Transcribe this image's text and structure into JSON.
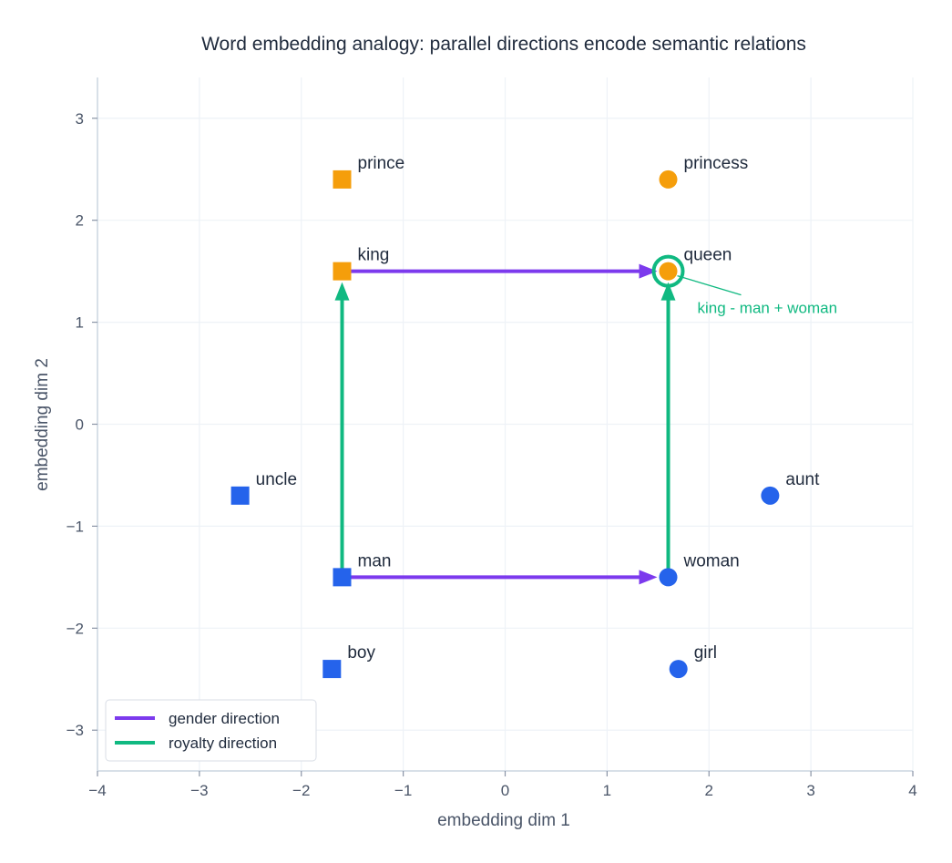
{
  "chart_data": {
    "type": "scatter",
    "title": "Word embedding analogy: parallel directions encode semantic relations",
    "xlabel": "embedding dim 1",
    "ylabel": "embedding dim 2",
    "xlim": [
      -4,
      4
    ],
    "ylim": [
      -3.4,
      3.4
    ],
    "xticks": [
      -4,
      -3,
      -2,
      -1,
      0,
      1,
      2,
      3,
      4
    ],
    "yticks": [
      -3,
      -2,
      -1,
      0,
      1,
      2,
      3
    ],
    "grid": true,
    "legend_position": "bottom-left",
    "colors": {
      "male_common": "#2563eb",
      "royal": "#f59e0b",
      "female_common": "#2563eb",
      "gender": "#7c3aed",
      "royalty": "#10b981",
      "axis": "#cbd5e1",
      "grid": "#eef2f7"
    },
    "points": [
      {
        "word": "prince",
        "x": -1.6,
        "y": 2.4,
        "marker": "square",
        "color": "#f59e0b"
      },
      {
        "word": "princess",
        "x": 1.6,
        "y": 2.4,
        "marker": "circle",
        "color": "#f59e0b"
      },
      {
        "word": "king",
        "x": -1.6,
        "y": 1.5,
        "marker": "square",
        "color": "#f59e0b"
      },
      {
        "word": "queen",
        "x": 1.6,
        "y": 1.5,
        "marker": "circle",
        "color": "#f59e0b"
      },
      {
        "word": "uncle",
        "x": -2.6,
        "y": -0.7,
        "marker": "square",
        "color": "#2563eb"
      },
      {
        "word": "aunt",
        "x": 2.6,
        "y": -0.7,
        "marker": "circle",
        "color": "#2563eb"
      },
      {
        "word": "man",
        "x": -1.6,
        "y": -1.5,
        "marker": "square",
        "color": "#2563eb"
      },
      {
        "word": "woman",
        "x": 1.6,
        "y": -1.5,
        "marker": "circle",
        "color": "#2563eb"
      },
      {
        "word": "boy",
        "x": -1.7,
        "y": -2.4,
        "marker": "square",
        "color": "#2563eb"
      },
      {
        "word": "girl",
        "x": 1.7,
        "y": -2.4,
        "marker": "circle",
        "color": "#2563eb"
      }
    ],
    "arrows": [
      {
        "from": [
          -1.6,
          1.5
        ],
        "to": [
          1.6,
          1.5
        ],
        "relation": "gender"
      },
      {
        "from": [
          -1.6,
          -1.5
        ],
        "to": [
          1.6,
          -1.5
        ],
        "relation": "gender"
      },
      {
        "from": [
          -1.6,
          -1.5
        ],
        "to": [
          -1.6,
          1.5
        ],
        "relation": "royalty"
      },
      {
        "from": [
          1.6,
          -1.5
        ],
        "to": [
          1.6,
          1.5
        ],
        "relation": "royalty"
      }
    ],
    "legend": [
      {
        "label": "gender direction",
        "color": "#7c3aed"
      },
      {
        "label": "royalty direction",
        "color": "#10b981"
      }
    ],
    "annotation": {
      "text": "king - man + woman",
      "target": [
        1.6,
        1.5
      ],
      "color": "#10b981"
    }
  }
}
